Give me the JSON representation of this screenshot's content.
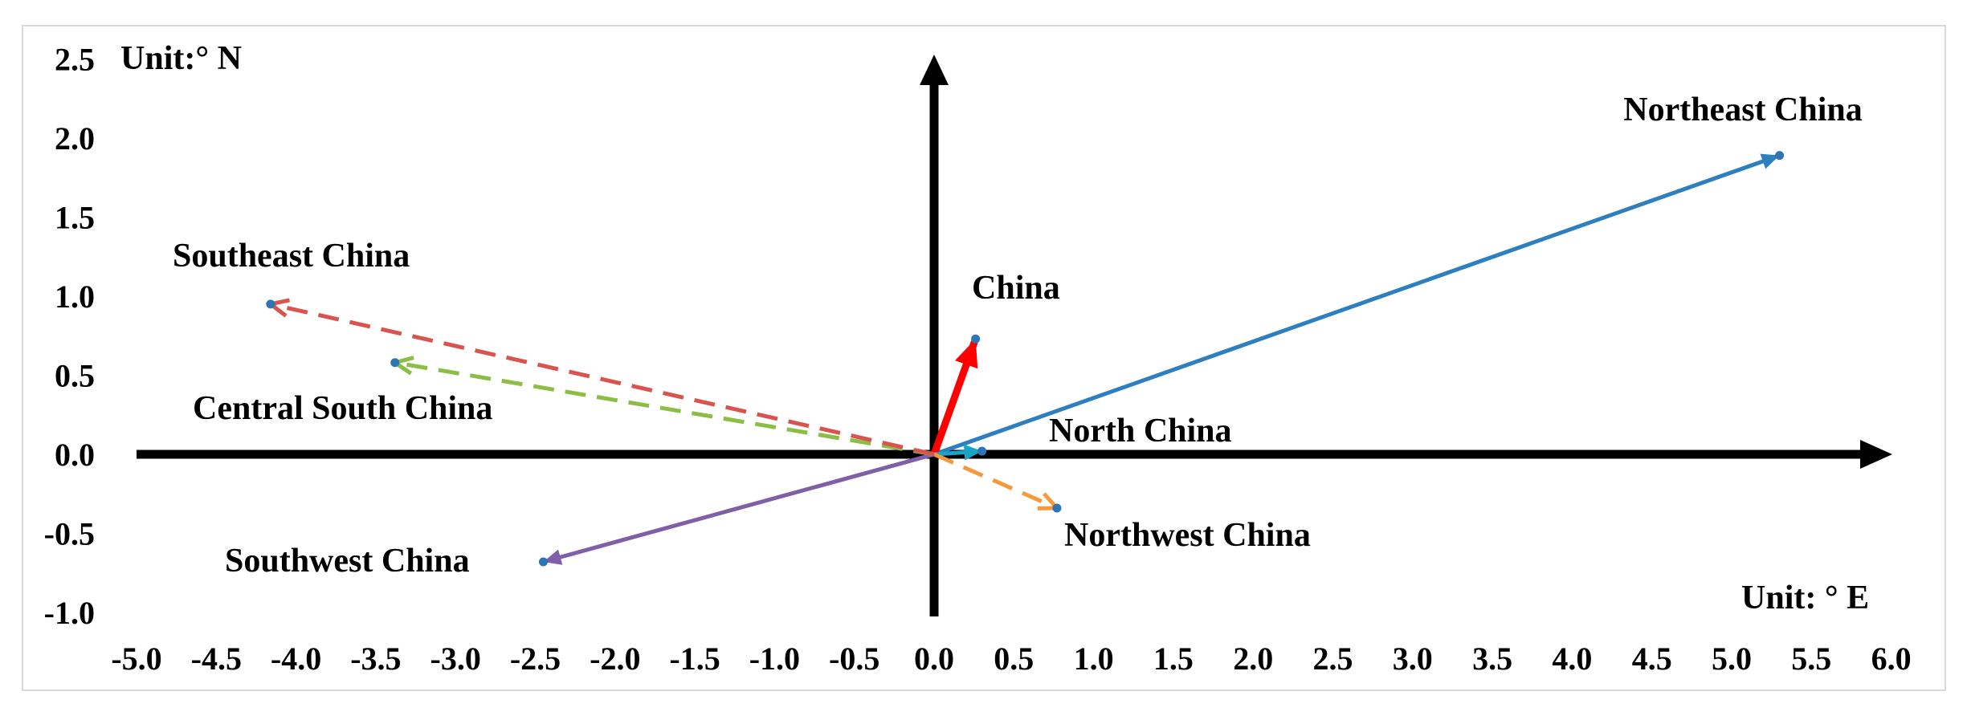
{
  "chart_data": {
    "type": "vector",
    "xlim": [
      -5.0,
      6.0
    ],
    "ylim": [
      -1.0,
      2.5
    ],
    "x_tick_labels": [
      "-5.0",
      "-4.5",
      "-4.0",
      "-3.5",
      "-3.0",
      "-2.5",
      "-2.0",
      "-1.5",
      "-1.0",
      "-0.5",
      "0.0",
      "0.5",
      "1.0",
      "1.5",
      "2.0",
      "2.5",
      "3.0",
      "3.5",
      "4.0",
      "4.5",
      "5.0",
      "5.5",
      "6.0"
    ],
    "y_tick_labels": [
      "2.5",
      "2.0",
      "1.5",
      "1.0",
      "0.5",
      "0.0",
      "-0.5",
      "-1.0"
    ],
    "x_unit_label": "Unit: ° E",
    "y_unit_label": "Unit:° N",
    "grid": false,
    "series": [
      {
        "name": "Northeast China",
        "x": 5.3,
        "y": 1.89,
        "color": "#2e7fbf",
        "dashed": false
      },
      {
        "name": "China",
        "x": 0.26,
        "y": 0.73,
        "color": "#ff0000",
        "dashed": false
      },
      {
        "name": "North China",
        "x": 0.3,
        "y": 0.02,
        "color": "#17a5c8",
        "dashed": false
      },
      {
        "name": "Northwest China",
        "x": 0.77,
        "y": -0.34,
        "color": "#f59a3c",
        "dashed": true
      },
      {
        "name": "Southwest China",
        "x": -2.45,
        "y": -0.68,
        "color": "#7f5fa8",
        "dashed": false
      },
      {
        "name": "Central South China",
        "x": -3.38,
        "y": 0.58,
        "color": "#8cbd45",
        "dashed": true
      },
      {
        "name": "Southeast China",
        "x": -4.16,
        "y": 0.95,
        "color": "#d9534f",
        "dashed": true
      }
    ]
  }
}
